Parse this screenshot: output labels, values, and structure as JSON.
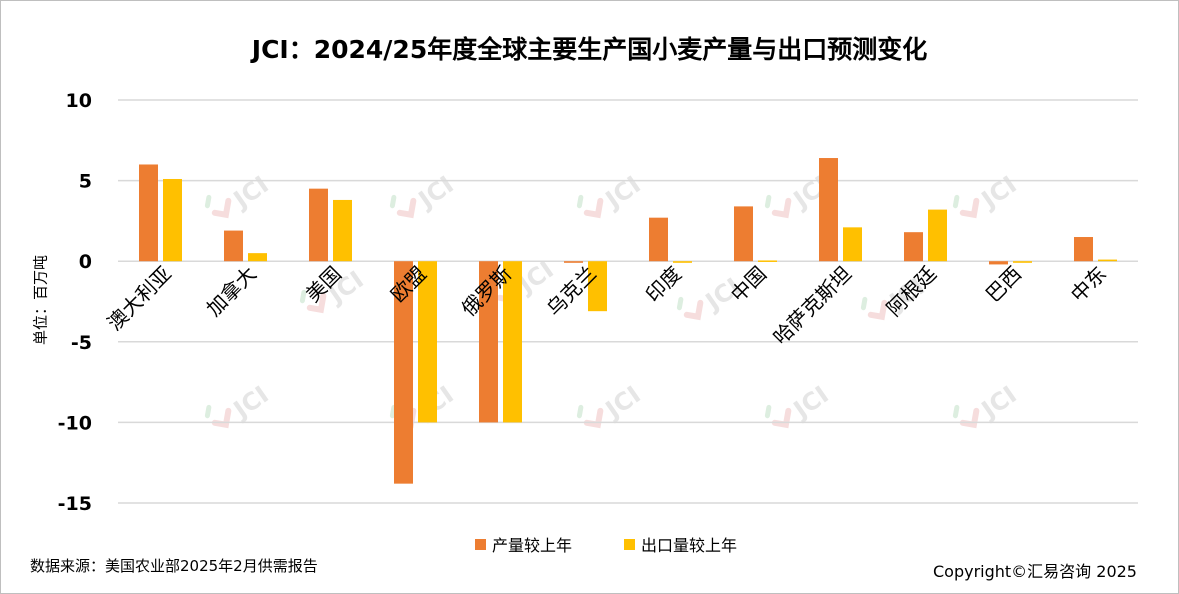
{
  "title": "JCI：2024/25年度全球主要生产国小麦产量与出口预测变化",
  "source": "数据来源：美国农业部2025年2月供需报告",
  "copyright": "Copyright©汇易咨询 2025",
  "watermark": "JCI",
  "chart_data": {
    "type": "bar",
    "title": "JCI：2024/25年度全球主要生产国小麦产量与出口预测变化",
    "ylabel": "单位：百万吨",
    "xlabel": "",
    "ylim": [
      -15,
      10
    ],
    "yticks": [
      "10",
      "5",
      "0",
      "-5",
      "-10",
      "-15"
    ],
    "grid": true,
    "legend_position": "bottom",
    "categories": [
      "澳大利亚",
      "加拿大",
      "美国",
      "欧盟",
      "俄罗斯",
      "乌克兰",
      "印度",
      "中国",
      "哈萨克斯坦",
      "阿根廷",
      "巴西",
      "中东"
    ],
    "series": [
      {
        "name": "产量较上年",
        "color": "#ED7D31",
        "values": [
          6.0,
          1.9,
          4.5,
          -13.8,
          -10.0,
          -0.1,
          2.7,
          3.4,
          6.4,
          1.8,
          -0.2,
          1.5
        ]
      },
      {
        "name": "出口量较上年",
        "color": "#FFC000",
        "values": [
          5.1,
          0.5,
          3.8,
          -10.0,
          -10.0,
          -3.1,
          -0.1,
          0.0,
          2.1,
          3.2,
          -0.1,
          0.1
        ]
      }
    ]
  }
}
